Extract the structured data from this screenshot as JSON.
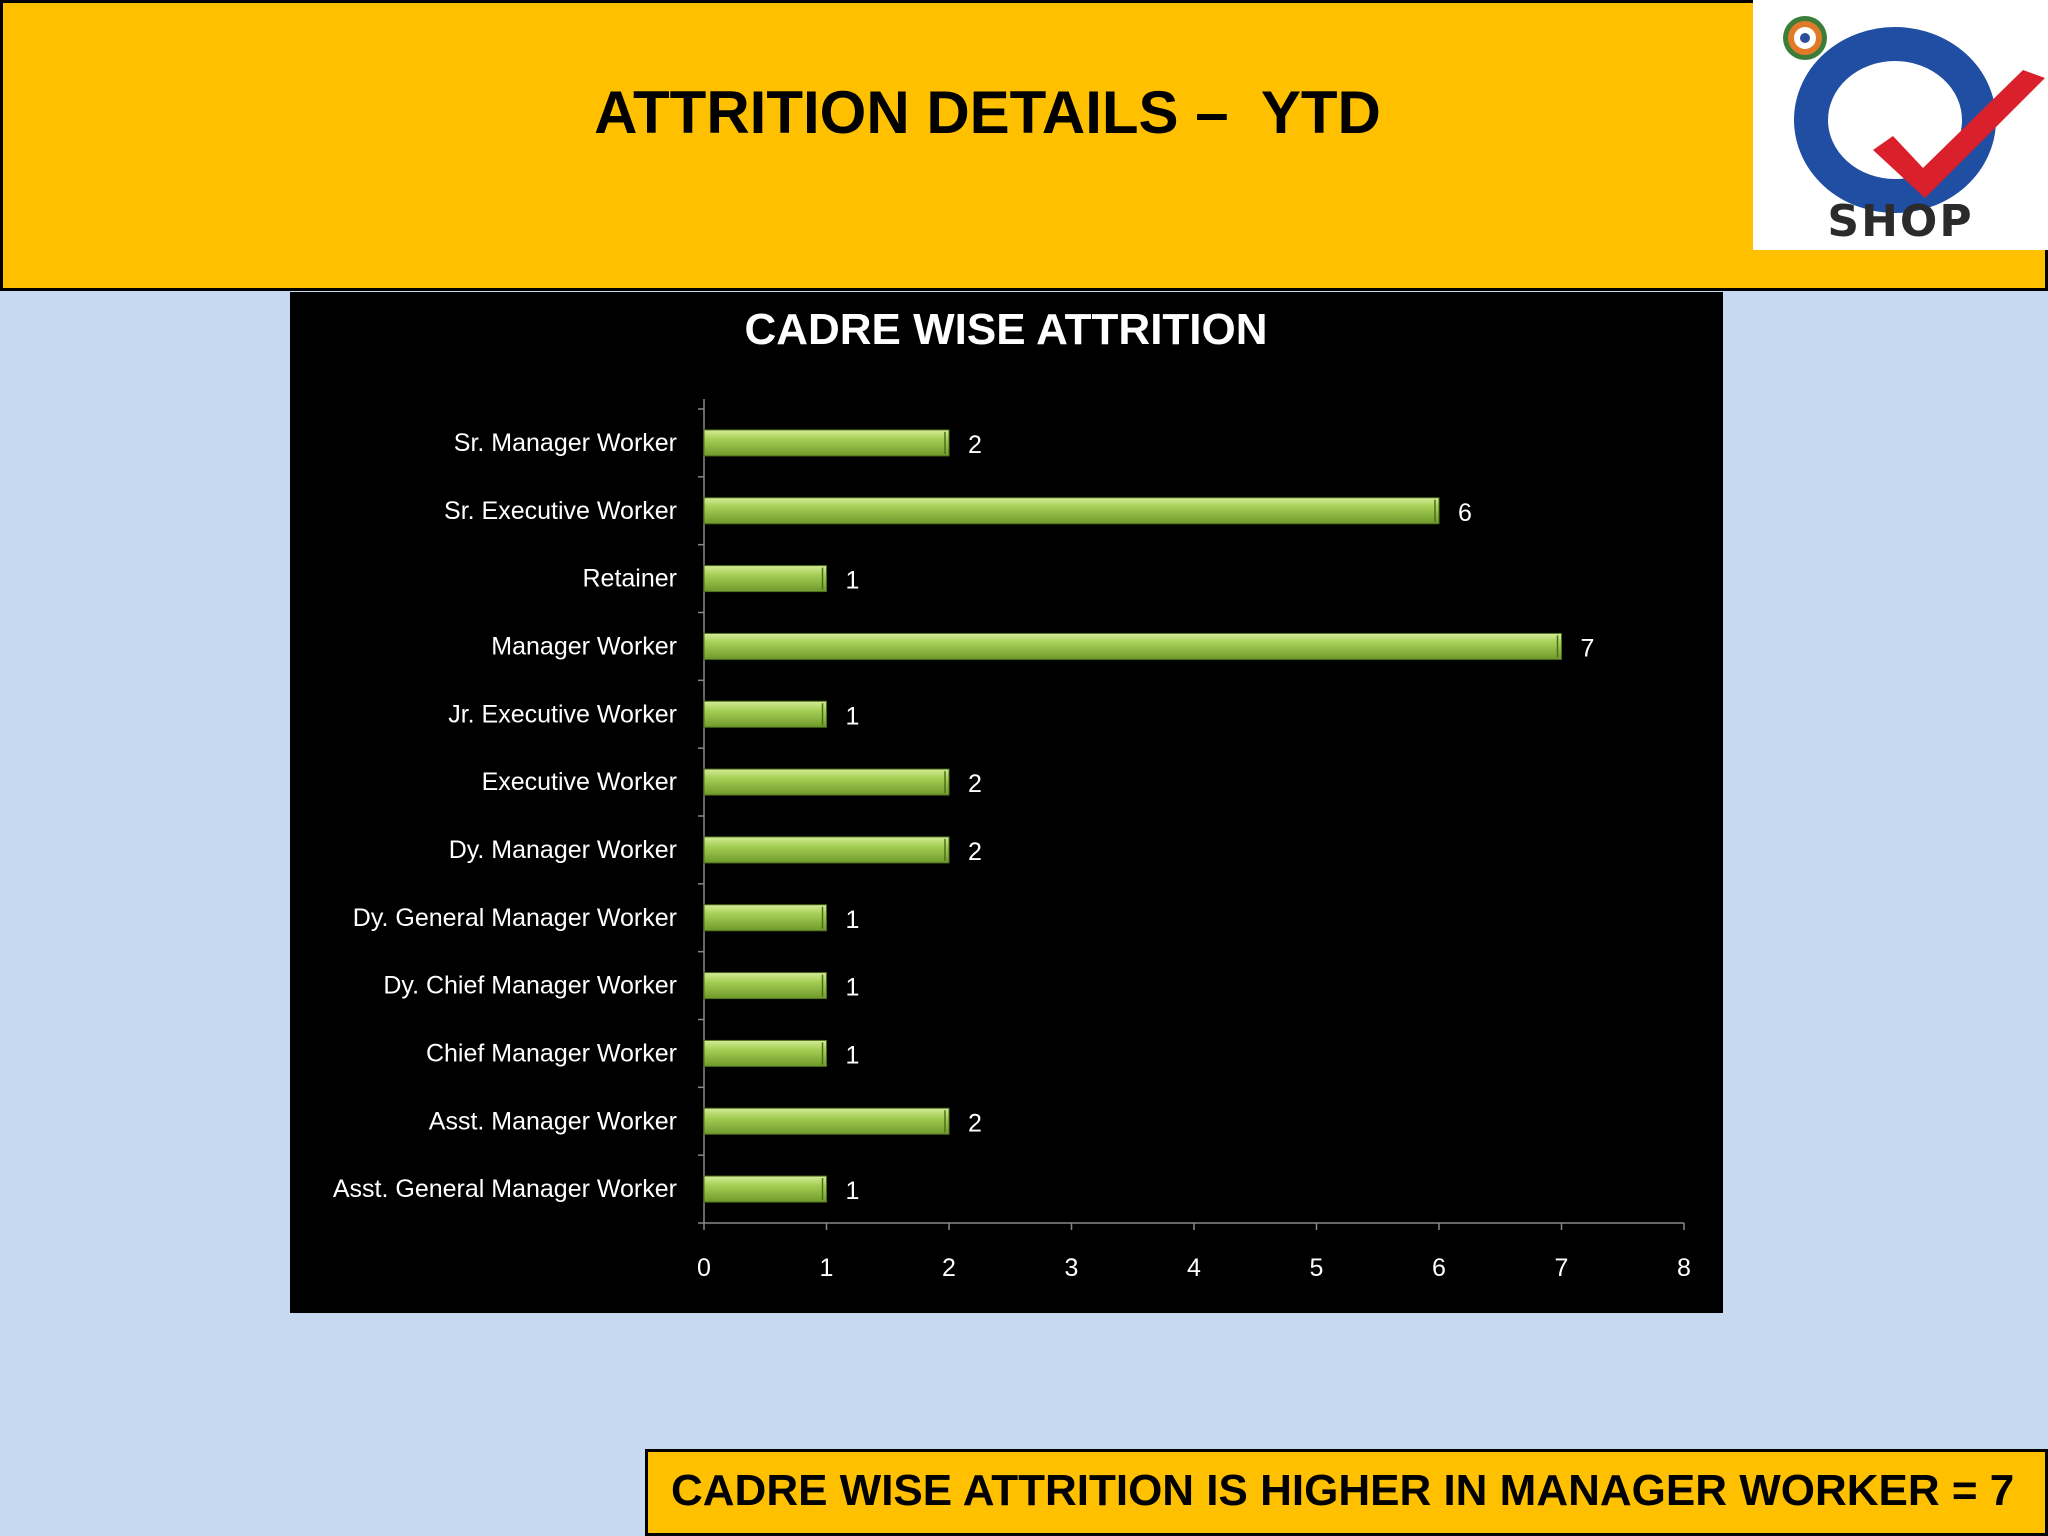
{
  "slide": {
    "title": "ATTRITION DETAILS –  YTD",
    "logo_text": "SHOP",
    "footer": "CADRE WISE ATTRITION IS HIGHER IN MANAGER WORKER = 7"
  },
  "colors": {
    "header_bg": "#ffc000",
    "page_bg": "#c6d9f1",
    "chart_bg": "#000000",
    "bar": "#8db640",
    "logo_blue": "#1f4ea3",
    "logo_red": "#d9202b"
  },
  "chart_data": {
    "type": "bar",
    "orientation": "horizontal",
    "title": "CADRE WISE ATTRITION",
    "categories": [
      "Sr. Manager Worker",
      "Sr. Executive Worker",
      "Retainer",
      "Manager Worker",
      "Jr. Executive Worker",
      "Executive Worker",
      "Dy. Manager Worker",
      "Dy. General Manager Worker",
      "Dy. Chief Manager Worker",
      "Chief Manager Worker",
      "Asst. Manager Worker",
      "Asst. General Manager Worker"
    ],
    "values": [
      2,
      6,
      1,
      7,
      1,
      2,
      2,
      1,
      1,
      1,
      2,
      1
    ],
    "xlim": [
      0,
      8
    ],
    "xticks": [
      0,
      1,
      2,
      3,
      4,
      5,
      6,
      7,
      8
    ],
    "data_labels": true,
    "legend": false,
    "grid": false
  }
}
